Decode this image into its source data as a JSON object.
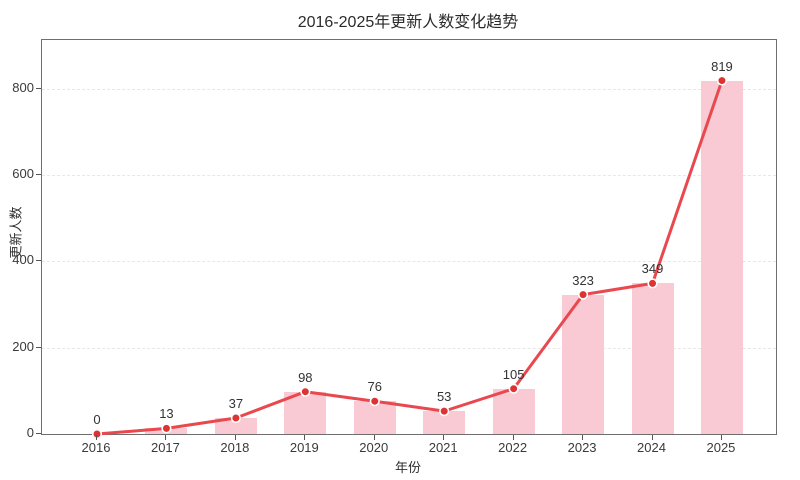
{
  "figure": {
    "title": "2016-2025年更新人数变化趋势",
    "xlabel": "年份",
    "ylabel": "更新人数"
  },
  "chart_data": {
    "type": "line",
    "subtype": "line-with-bars",
    "title": "2016-2025年更新人数变化趋势",
    "xlabel": "年份",
    "ylabel": "更新人数",
    "categories": [
      "2016",
      "2017",
      "2018",
      "2019",
      "2020",
      "2021",
      "2022",
      "2023",
      "2024",
      "2025"
    ],
    "values": [
      0,
      13,
      37,
      98,
      76,
      53,
      105,
      323,
      349,
      819
    ],
    "data_labels": [
      "0",
      "13",
      "37",
      "98",
      "76",
      "53",
      "105",
      "323",
      "349",
      "819"
    ],
    "yticks": [
      0,
      200,
      400,
      600,
      800
    ],
    "ylim": [
      0,
      913
    ],
    "grid": "horizontal-dashed",
    "legend": "none",
    "colors": {
      "bar_fill": "#f9cad3",
      "line": "#e8484e",
      "marker_fill": "#dd3333",
      "marker_edge": "#ffffff",
      "grid": "#e7e7e7",
      "spine": "#6e6e6e",
      "tick_text": "#3a3a3a",
      "label_text": "#333333",
      "title_text": "#2b2b2b"
    }
  }
}
